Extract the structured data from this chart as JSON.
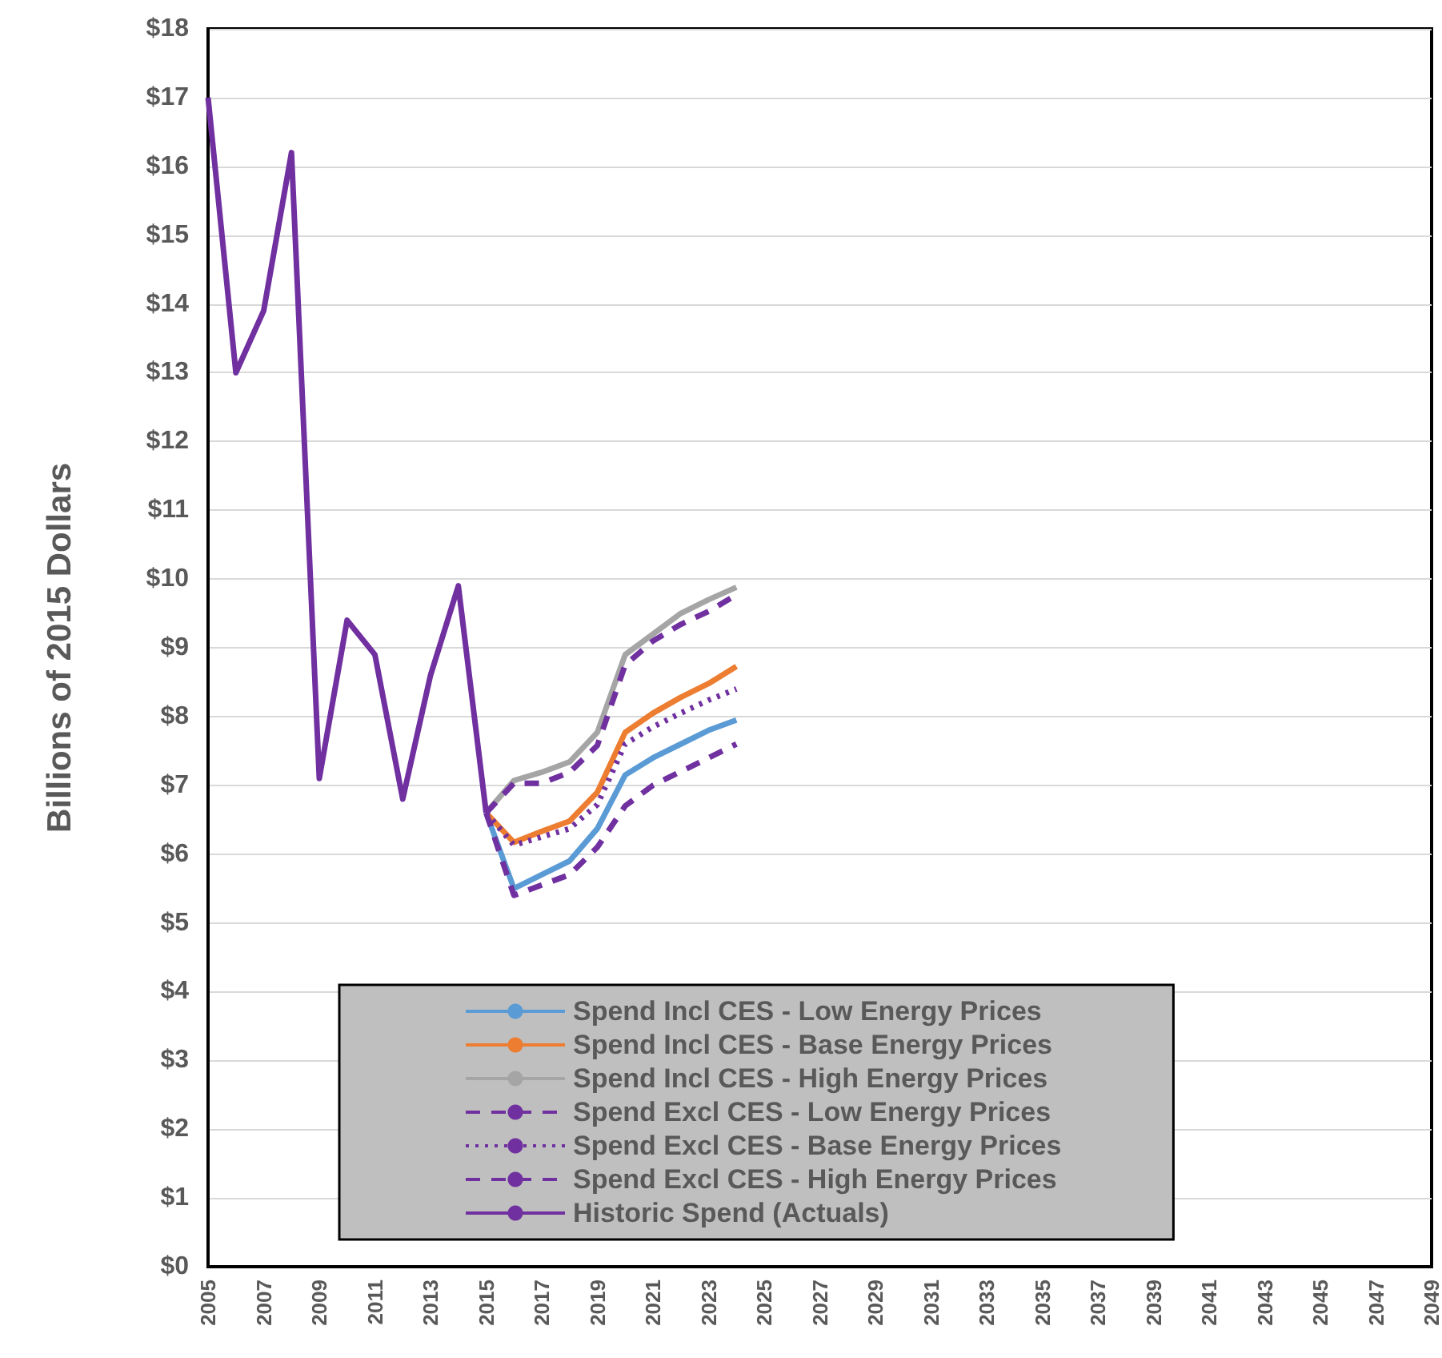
{
  "chart_data": {
    "type": "line",
    "ylabel": "Billions of 2015 Dollars",
    "categories": [
      "2005",
      null,
      "2007",
      null,
      "2009",
      null,
      "2011",
      null,
      "2013",
      null,
      "2015",
      null,
      "2017",
      null,
      "2019",
      null,
      "2021",
      null,
      "2023",
      null,
      "2025",
      null,
      "2027",
      null,
      "2029",
      null,
      "2031",
      null,
      "2033",
      null,
      "2035",
      null,
      "2037",
      null,
      "2039",
      null,
      "2041",
      null,
      "2043",
      null,
      "2045",
      null,
      "2047",
      null,
      "2049"
    ],
    "ylim": [
      0,
      18
    ],
    "yticks": [
      {
        "value": 0,
        "label": "$0"
      },
      {
        "value": 1,
        "label": "$1"
      },
      {
        "value": 2,
        "label": "$2"
      },
      {
        "value": 3,
        "label": "$3"
      },
      {
        "value": 4,
        "label": "$4"
      },
      {
        "value": 5,
        "label": "$5"
      },
      {
        "value": 6,
        "label": "$6"
      },
      {
        "value": 7,
        "label": "$7"
      },
      {
        "value": 8,
        "label": "$8"
      },
      {
        "value": 9,
        "label": "$9"
      },
      {
        "value": 10,
        "label": "$10"
      },
      {
        "value": 11,
        "label": "$11"
      },
      {
        "value": 12,
        "label": "$12"
      },
      {
        "value": 13,
        "label": "$13"
      },
      {
        "value": 14,
        "label": "$14"
      },
      {
        "value": 15,
        "label": "$15"
      },
      {
        "value": 16,
        "label": "$16"
      },
      {
        "value": 17,
        "label": "$17"
      },
      {
        "value": 18,
        "label": "$18"
      }
    ],
    "grid": "y",
    "legend": "bottom",
    "marker": "none",
    "series": [
      {
        "name": "Spend Incl CES - Low Energy Prices",
        "color": "#5b9bd5",
        "line_style": "solid",
        "values": [
          null,
          null,
          null,
          null,
          null,
          null,
          null,
          null,
          null,
          null,
          6.6,
          5.5,
          5.7,
          5.9,
          6.37,
          7.15,
          7.4,
          7.6,
          7.8,
          7.95,
          null,
          null,
          null,
          null,
          null,
          null,
          null,
          null,
          null,
          null,
          null,
          null,
          null,
          null,
          null,
          null,
          null,
          null,
          null,
          null,
          null,
          null,
          null,
          null,
          null
        ]
      },
      {
        "name": "Spend Incl CES - Base Energy Prices",
        "color": "#ed7d31",
        "line_style": "solid",
        "values": [
          null,
          null,
          null,
          null,
          null,
          null,
          null,
          null,
          null,
          null,
          6.6,
          6.17,
          6.33,
          6.48,
          6.9,
          7.77,
          8.05,
          8.28,
          8.48,
          8.73,
          null,
          null,
          null,
          null,
          null,
          null,
          null,
          null,
          null,
          null,
          null,
          null,
          null,
          null,
          null,
          null,
          null,
          null,
          null,
          null,
          null,
          null,
          null,
          null,
          null
        ]
      },
      {
        "name": "Spend Incl CES - High Energy Prices",
        "color": "#a5a5a5",
        "line_style": "solid",
        "values": [
          null,
          null,
          null,
          null,
          null,
          null,
          null,
          null,
          null,
          null,
          6.6,
          7.07,
          7.19,
          7.34,
          7.77,
          8.9,
          9.2,
          9.5,
          9.7,
          9.88,
          null,
          null,
          null,
          null,
          null,
          null,
          null,
          null,
          null,
          null,
          null,
          null,
          null,
          null,
          null,
          null,
          null,
          null,
          null,
          null,
          null,
          null,
          null,
          null,
          null
        ]
      },
      {
        "name": "Spend Excl CES - Low Energy Prices",
        "color": "#7030a0",
        "line_style": "dashed",
        "values": [
          null,
          null,
          null,
          null,
          null,
          null,
          null,
          null,
          null,
          null,
          6.6,
          5.4,
          5.55,
          5.7,
          6.1,
          6.7,
          7.0,
          7.2,
          7.4,
          7.6,
          null,
          null,
          null,
          null,
          null,
          null,
          null,
          null,
          null,
          null,
          null,
          null,
          null,
          null,
          null,
          null,
          null,
          null,
          null,
          null,
          null,
          null,
          null,
          null,
          null
        ]
      },
      {
        "name": "Spend Excl CES - Base Energy Prices",
        "color": "#7030a0",
        "line_style": "dotted",
        "values": [
          null,
          null,
          null,
          null,
          null,
          null,
          null,
          null,
          null,
          null,
          6.6,
          6.13,
          6.25,
          6.37,
          6.72,
          7.6,
          7.85,
          8.05,
          8.24,
          8.4,
          null,
          null,
          null,
          null,
          null,
          null,
          null,
          null,
          null,
          null,
          null,
          null,
          null,
          null,
          null,
          null,
          null,
          null,
          null,
          null,
          null,
          null,
          null,
          null,
          null
        ]
      },
      {
        "name": "Spend Excl CES - High Energy Prices",
        "color": "#7030a0",
        "line_style": "dashed",
        "values": [
          null,
          null,
          null,
          null,
          null,
          null,
          null,
          null,
          null,
          null,
          6.6,
          7.03,
          7.03,
          7.19,
          7.58,
          8.75,
          9.1,
          9.34,
          9.53,
          9.77,
          null,
          null,
          null,
          null,
          null,
          null,
          null,
          null,
          null,
          null,
          null,
          null,
          null,
          null,
          null,
          null,
          null,
          null,
          null,
          null,
          null,
          null,
          null,
          null,
          null
        ]
      },
      {
        "name": "Historic Spend (Actuals)",
        "color": "#7030a0",
        "line_style": "solid",
        "values": [
          17.0,
          13.0,
          13.9,
          16.2,
          7.1,
          9.4,
          8.9,
          6.8,
          8.6,
          9.9,
          6.6,
          null,
          null,
          null,
          null,
          null,
          null,
          null,
          null,
          null,
          null,
          null,
          null,
          null,
          null,
          null,
          null,
          null,
          null,
          null,
          null,
          null,
          null,
          null,
          null,
          null,
          null,
          null,
          null,
          null,
          null,
          null,
          null,
          null,
          null
        ]
      }
    ]
  }
}
